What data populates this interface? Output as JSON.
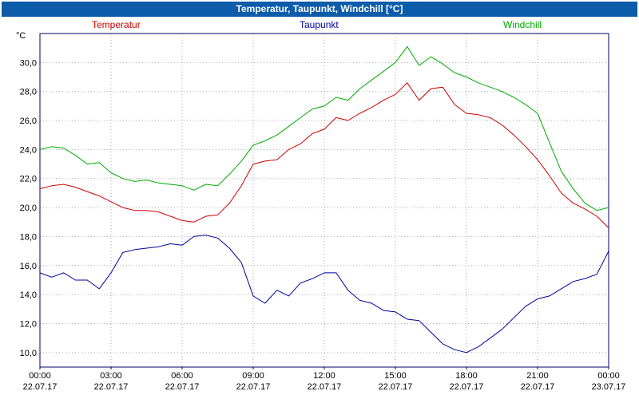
{
  "window": {
    "title": "Temperatur, Taupunkt, Windchill [°C]"
  },
  "chart_data": {
    "type": "line",
    "title": "Temperatur, Taupunkt, Windchill [°C]",
    "y_unit": "°C",
    "ylim": [
      9,
      32
    ],
    "xlim_hours": [
      0,
      24
    ],
    "grid": true,
    "legend_position": "top",
    "y_ticks": [
      10,
      12,
      14,
      16,
      18,
      20,
      22,
      24,
      26,
      28,
      30
    ],
    "y_tick_labels": [
      "10,0",
      "12,0",
      "14,0",
      "16,0",
      "18,0",
      "20,0",
      "22,0",
      "24,0",
      "26,0",
      "28,0",
      "30,0"
    ],
    "x_ticks_hours": [
      0,
      3,
      6,
      9,
      12,
      15,
      18,
      21,
      24
    ],
    "x_tick_labels": [
      "00:00",
      "03:00",
      "06:00",
      "09:00",
      "12:00",
      "15:00",
      "18:00",
      "21:00",
      "00:00"
    ],
    "x_tick_dates": [
      "22.07.17",
      "22.07.17",
      "22.07.17",
      "22.07.17",
      "22.07.17",
      "22.07.17",
      "22.07.17",
      "22.07.17",
      "23.07.17"
    ],
    "x_hours": [
      0,
      0.5,
      1,
      1.5,
      2,
      2.5,
      3,
      3.5,
      4,
      4.5,
      5,
      5.5,
      6,
      6.5,
      7,
      7.5,
      8,
      8.5,
      9,
      9.5,
      10,
      10.5,
      11,
      11.5,
      12,
      12.5,
      13,
      13.5,
      14,
      14.5,
      15,
      15.5,
      16,
      16.5,
      17,
      17.5,
      18,
      18.5,
      19,
      19.5,
      20,
      20.5,
      21,
      21.5,
      22,
      22.5,
      23,
      23.5,
      24
    ],
    "series": [
      {
        "name": "Temperatur",
        "color": "#cc0000",
        "values": [
          21.3,
          21.5,
          21.6,
          21.4,
          21.1,
          20.8,
          20.4,
          20.0,
          19.8,
          19.8,
          19.7,
          19.4,
          19.1,
          19.0,
          19.4,
          19.5,
          20.3,
          21.5,
          23.0,
          23.2,
          23.3,
          24.0,
          24.4,
          25.1,
          25.4,
          26.2,
          26.0,
          26.5,
          26.9,
          27.4,
          27.8,
          28.6,
          27.4,
          28.2,
          28.3,
          27.1,
          26.5,
          26.4,
          26.2,
          25.7,
          25.0,
          24.2,
          23.3,
          22.2,
          21.0,
          20.3,
          19.9,
          19.4,
          18.6
        ]
      },
      {
        "name": "Taupunkt",
        "color": "#000099",
        "values": [
          15.5,
          15.2,
          15.5,
          15.0,
          15.0,
          14.4,
          15.5,
          16.9,
          17.1,
          17.2,
          17.3,
          17.5,
          17.4,
          18.0,
          18.1,
          17.9,
          17.2,
          16.2,
          13.9,
          13.4,
          14.3,
          13.9,
          14.8,
          15.1,
          15.5,
          15.5,
          14.3,
          13.6,
          13.4,
          12.9,
          12.8,
          12.3,
          12.2,
          11.4,
          10.6,
          10.2,
          10.0,
          10.4,
          11.0,
          11.6,
          12.4,
          13.2,
          13.7,
          13.9,
          14.4,
          14.9,
          15.1,
          15.4,
          17.0
        ]
      },
      {
        "name": "Windchill",
        "color": "#00aa00",
        "values": [
          24.0,
          24.2,
          24.1,
          23.6,
          23.0,
          23.1,
          22.4,
          22.0,
          21.8,
          21.9,
          21.7,
          21.6,
          21.5,
          21.2,
          21.6,
          21.5,
          22.3,
          23.2,
          24.3,
          24.6,
          25.0,
          25.6,
          26.2,
          26.8,
          27.0,
          27.6,
          27.4,
          28.2,
          28.8,
          29.4,
          30.0,
          31.1,
          29.8,
          30.4,
          29.9,
          29.3,
          29.0,
          28.6,
          28.3,
          28.0,
          27.6,
          27.1,
          26.5,
          24.5,
          22.5,
          21.3,
          20.3,
          19.8,
          20.0
        ]
      }
    ],
    "colors": {
      "titlebar_bg": "#0c5caa",
      "titlebar_text": "#ffffff",
      "frame": "#000066",
      "grid": "#aaaaaa",
      "tick_text": "#000000"
    }
  }
}
